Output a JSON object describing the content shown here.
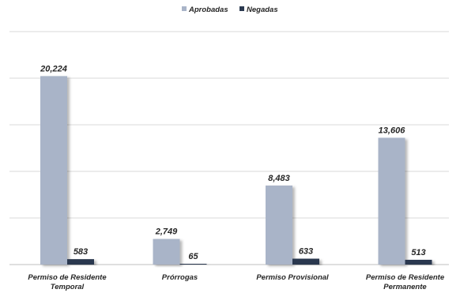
{
  "chart_data": {
    "type": "bar",
    "categories": [
      [
        "Permiso de Residente",
        "Temporal"
      ],
      [
        "Prórrogas"
      ],
      [
        "Permiso Provisional"
      ],
      [
        "Permiso de Residente",
        "Permanente"
      ]
    ],
    "series": [
      {
        "name": "Aprobadas",
        "values": [
          20224,
          2749,
          8483,
          13606
        ],
        "labels": [
          "20,224",
          "2,749",
          "8,483",
          "13,606"
        ],
        "color": "#a9b4c8"
      },
      {
        "name": "Negadas",
        "values": [
          583,
          65,
          633,
          513
        ],
        "labels": [
          "583",
          "65",
          "633",
          "513"
        ],
        "color": "#2b3950"
      }
    ],
    "ylim": [
      0,
      25000
    ],
    "gridline_values": [
      0,
      5000,
      10000,
      15000,
      20000,
      25000
    ],
    "grid": true,
    "legend_position": "top-center",
    "title": "",
    "xlabel": "",
    "ylabel": ""
  }
}
